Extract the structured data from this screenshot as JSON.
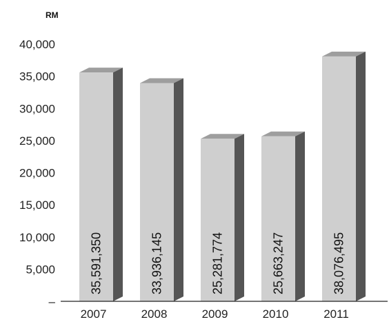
{
  "chart_data": {
    "type": "bar",
    "unit_label": "RM",
    "categories": [
      "2007",
      "2008",
      "2009",
      "2010",
      "2011"
    ],
    "values": [
      35591350,
      33936145,
      25281774,
      25663247,
      38076495
    ],
    "value_labels": [
      "35,591,350",
      "33,936,145",
      "25,281,774",
      "25,663,247",
      "38,076,495"
    ],
    "y_ticks": [
      "–",
      "5,000",
      "10,000",
      "15,000",
      "20,000",
      "25,000",
      "30,000",
      "35,000",
      "40,000"
    ],
    "ylim": [
      0,
      40000000
    ],
    "grid": false,
    "legend": "none",
    "colors": {
      "bar_front": "#cfcfcf",
      "bar_side": "#555555",
      "bar_top": "#9e9e9e",
      "axis": "#222222"
    }
  }
}
